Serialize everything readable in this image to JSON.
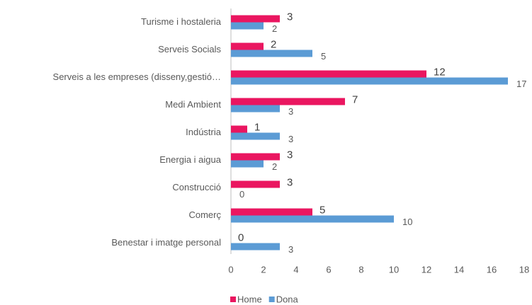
{
  "chart_data": {
    "type": "hbar",
    "categories": [
      "Turisme i hostaleria",
      "Serveis Socials",
      "Serveis a les empreses (disseny,gestió…",
      "Medi Ambient",
      "Indústria",
      "Energia i aigua",
      "Construcció",
      "Comerç",
      "Benestar i imatge personal"
    ],
    "series": [
      {
        "name": "Home",
        "color": "#ea1660",
        "values": [
          3,
          2,
          12,
          7,
          1,
          3,
          3,
          5,
          0
        ]
      },
      {
        "name": "Dona",
        "color": "#5b9bd5",
        "values": [
          2,
          5,
          17,
          3,
          3,
          2,
          0,
          10,
          3
        ]
      }
    ],
    "xlim": [
      0,
      18
    ],
    "xticks": [
      0,
      2,
      4,
      6,
      8,
      10,
      12,
      14,
      16,
      18
    ],
    "grid": false,
    "legend": "bottom"
  }
}
